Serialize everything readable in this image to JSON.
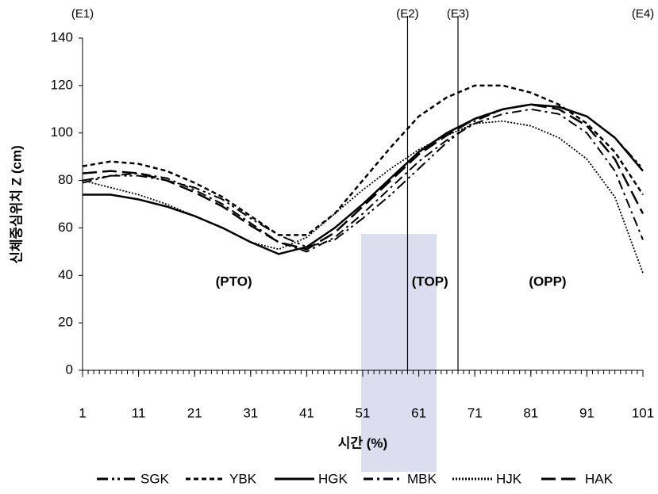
{
  "chart_data": {
    "type": "line",
    "x_label": "시간 (%)",
    "y_label": "신체중심위치 Z (cm)",
    "x": [
      1,
      6,
      11,
      16,
      21,
      26,
      31,
      36,
      41,
      46,
      51,
      56,
      61,
      66,
      71,
      76,
      81,
      86,
      91,
      96,
      101
    ],
    "series": [
      {
        "name": "SGK",
        "color": "#000000",
        "values": [
          80,
          82,
          82,
          80,
          77,
          72,
          64,
          57,
          52,
          55,
          64,
          74,
          85,
          96,
          105,
          110,
          112,
          111,
          107,
          98,
          85
        ]
      },
      {
        "name": "YBK",
        "color": "#000000",
        "values": [
          86,
          88,
          87,
          84,
          79,
          73,
          65,
          57,
          57,
          66,
          80,
          94,
          107,
          115,
          120,
          120,
          117,
          112,
          104,
          92,
          74
        ]
      },
      {
        "name": "HGK",
        "color": "#000000",
        "values": [
          74,
          74,
          72,
          69,
          65,
          60,
          54,
          49,
          52,
          60,
          70,
          81,
          92,
          100,
          106,
          110,
          112,
          111,
          107,
          98,
          84
        ]
      },
      {
        "name": "MBK",
        "color": "#000000",
        "values": [
          79,
          82,
          83,
          81,
          76,
          70,
          62,
          54,
          50,
          56,
          66,
          77,
          88,
          97,
          104,
          108,
          110,
          108,
          100,
          84,
          55
        ]
      },
      {
        "name": "HJK",
        "color": "#000000",
        "values": [
          80,
          77,
          74,
          70,
          65,
          60,
          54,
          51,
          56,
          66,
          76,
          85,
          93,
          99,
          104,
          105,
          103,
          98,
          89,
          73,
          41
        ]
      },
      {
        "name": "HAK",
        "color": "#000000",
        "values": [
          83,
          84,
          83,
          80,
          75,
          69,
          61,
          54,
          51,
          58,
          69,
          80,
          91,
          99,
          106,
          110,
          112,
          110,
          103,
          89,
          66
        ]
      }
    ],
    "events": [
      {
        "x": 1,
        "label": "(E1)"
      },
      {
        "x": 59,
        "label": "(E2)"
      },
      {
        "x": 68,
        "label": "(E3)"
      },
      {
        "x": 101,
        "label": "(E4)"
      }
    ],
    "phases": [
      {
        "x": 28,
        "y": 37,
        "label": "(PTO)"
      },
      {
        "x": 63,
        "y": 37,
        "label": "(TOP)"
      },
      {
        "x": 84,
        "y": 37,
        "label": "(OPP)"
      }
    ],
    "xlim": [
      1,
      101
    ],
    "ylim": [
      0,
      140
    ],
    "xticks": [
      1,
      11,
      21,
      31,
      41,
      51,
      61,
      71,
      81,
      91,
      101
    ],
    "yticks": [
      0,
      20,
      40,
      60,
      80,
      100,
      120,
      140
    ]
  }
}
